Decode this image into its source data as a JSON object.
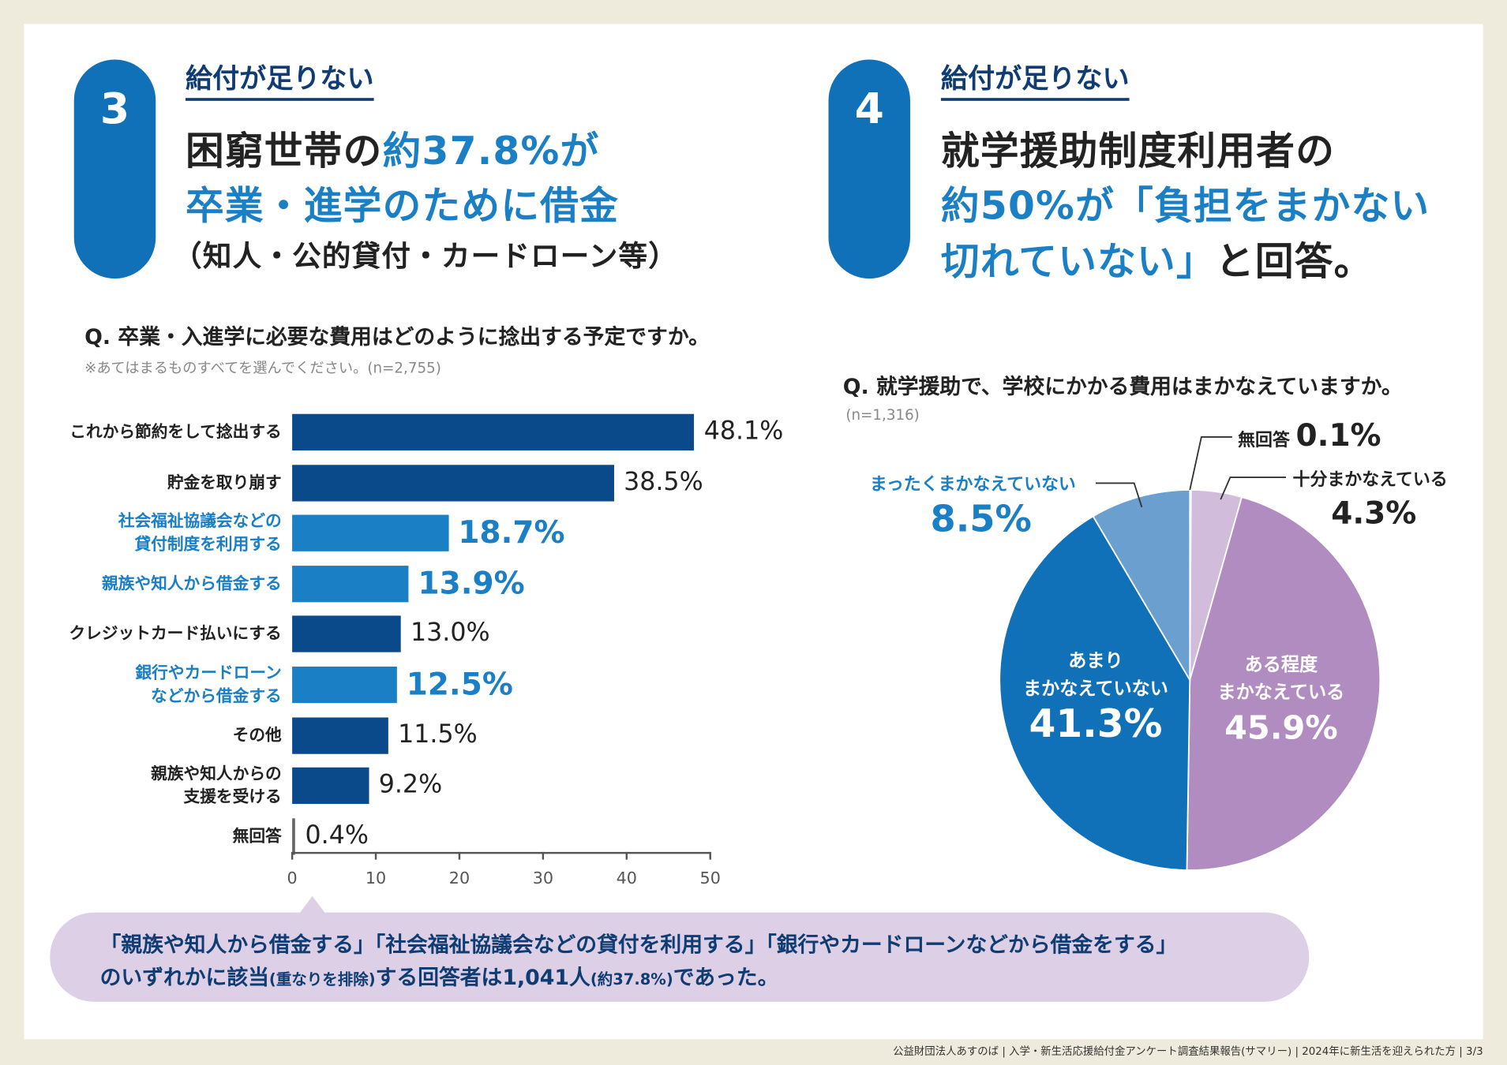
{
  "section3": {
    "number": "3",
    "kicker": "給付が足りない",
    "title_line1_a": "困窮世帯の",
    "title_line1_b": "約37.8%が",
    "title_line2": "卒業・進学のために借金",
    "title_line3": "（知人・公的貸付・カードローン等）"
  },
  "section4": {
    "number": "4",
    "kicker": "給付が足りない",
    "title_line1": "就学援助制度利用者の",
    "title_line2": "約50%が「負担をまかない",
    "title_line3_a": "切れていない」",
    "title_line3_b": "と回答。"
  },
  "colors": {
    "accent_blue": "#1a7fc4",
    "dark_bar": "#0b4a8a",
    "navy": "#0f3d73",
    "callout_bg": "#ddd0e6"
  },
  "chart_data": [
    {
      "type": "bar",
      "orientation": "horizontal",
      "title": "Q. 卒業・入進学に必要な費用はどのように捻出する予定ですか。",
      "subtitle": "※あてはまるものすべてを選んでください。(n=2,755)",
      "categories": [
        "これから節約をして捻出する",
        "貯金を取り崩す",
        "社会福祉協議会などの貸付制度を利用する",
        "親族や知人から借金する",
        "クレジットカード払いにする",
        "銀行やカードローンなどから借金する",
        "その他",
        "親族や知人からの支援を受ける",
        "無回答"
      ],
      "label_lines": [
        [
          "これから節約をして捻出する"
        ],
        [
          "貯金を取り崩す"
        ],
        [
          "社会福祉協議会などの",
          "貸付制度を利用する"
        ],
        [
          "親族や知人から借金する"
        ],
        [
          "クレジットカード払いにする"
        ],
        [
          "銀行やカードローン",
          "などから借金する"
        ],
        [
          "その他"
        ],
        [
          "親族や知人からの",
          "支援を受ける"
        ],
        [
          "無回答"
        ]
      ],
      "values": [
        48.1,
        38.5,
        18.7,
        13.9,
        13.0,
        12.5,
        11.5,
        9.2,
        0.4
      ],
      "value_labels": [
        "48.1%",
        "38.5%",
        "18.7%",
        "13.9%",
        "13.0%",
        "12.5%",
        "11.5%",
        "9.2%",
        "0.4%"
      ],
      "highlighted": [
        false,
        false,
        true,
        true,
        false,
        true,
        false,
        false,
        false
      ],
      "xlim": [
        0,
        50
      ],
      "xticks": [
        "0",
        "10",
        "20",
        "30",
        "40",
        "50"
      ],
      "grid": false
    },
    {
      "type": "pie",
      "title": "Q. 就学援助で、学校にかかる費用はまかなえていますか。",
      "subtitle": "(n=1,316)",
      "slices": [
        {
          "label": "無回答",
          "value": 0.1,
          "value_label": "0.1%",
          "color": "#666666"
        },
        {
          "label": "十分まかなえている",
          "value": 4.3,
          "value_label": "4.3%",
          "color": "#d2bcdc"
        },
        {
          "label": "ある程度まかなえている",
          "value": 45.9,
          "value_label": "45.9%",
          "color": "#b08cc0"
        },
        {
          "label": "あまりまかなえていない",
          "value": 41.3,
          "value_label": "41.3%",
          "color": "#1070b8"
        },
        {
          "label": "まったくまかなえていない",
          "value": 8.5,
          "value_label": "8.5%",
          "color": "#6a9fd0"
        }
      ],
      "pie_labels": {
        "s3_line1": "ある程度",
        "s3_line2": "まかなえている",
        "s4_line1": "あまり",
        "s4_line2": "まかなえていない"
      }
    }
  ],
  "callout": {
    "line1": "「親族や知人から借金する」「社会福祉協議会などの貸付を利用する」「銀行やカードローンなどから借金をする」",
    "line2_a": "のいずれかに該当",
    "line2_b": "(重なりを排除)",
    "line2_c": "する回答者は1,041人",
    "line2_d": "(約37.8%)",
    "line2_e": "であった。"
  },
  "footer": "公益財団法人あすのば | 入学・新生活応援給付金アンケート調査結果報告(サマリー) | 2024年に新生活を迎えられた方 | 3/3"
}
